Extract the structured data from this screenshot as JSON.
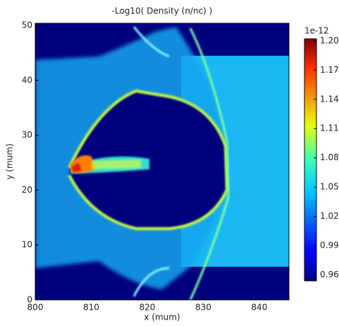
{
  "chart_data": {
    "type": "heatmap",
    "title": "-Log10( Density (n/nc) )",
    "x_label": "x (mum)",
    "y_label": "y (mum)",
    "xlim": [
      800,
      845.3
    ],
    "xticks": [
      800,
      810,
      820,
      830,
      840
    ],
    "ylim": [
      0,
      50.4
    ],
    "yticks": [
      0,
      10,
      20,
      30,
      40,
      50
    ],
    "colorbar": {
      "offset_label": "1e-12",
      "clim": [
        0.954,
        1.202
      ],
      "ticks": [
        0.96,
        0.99,
        1.02,
        1.05,
        1.08,
        1.11,
        1.14,
        1.17,
        {
          "value": 1.2,
          "label": "1.20"
        }
      ]
    }
  }
}
